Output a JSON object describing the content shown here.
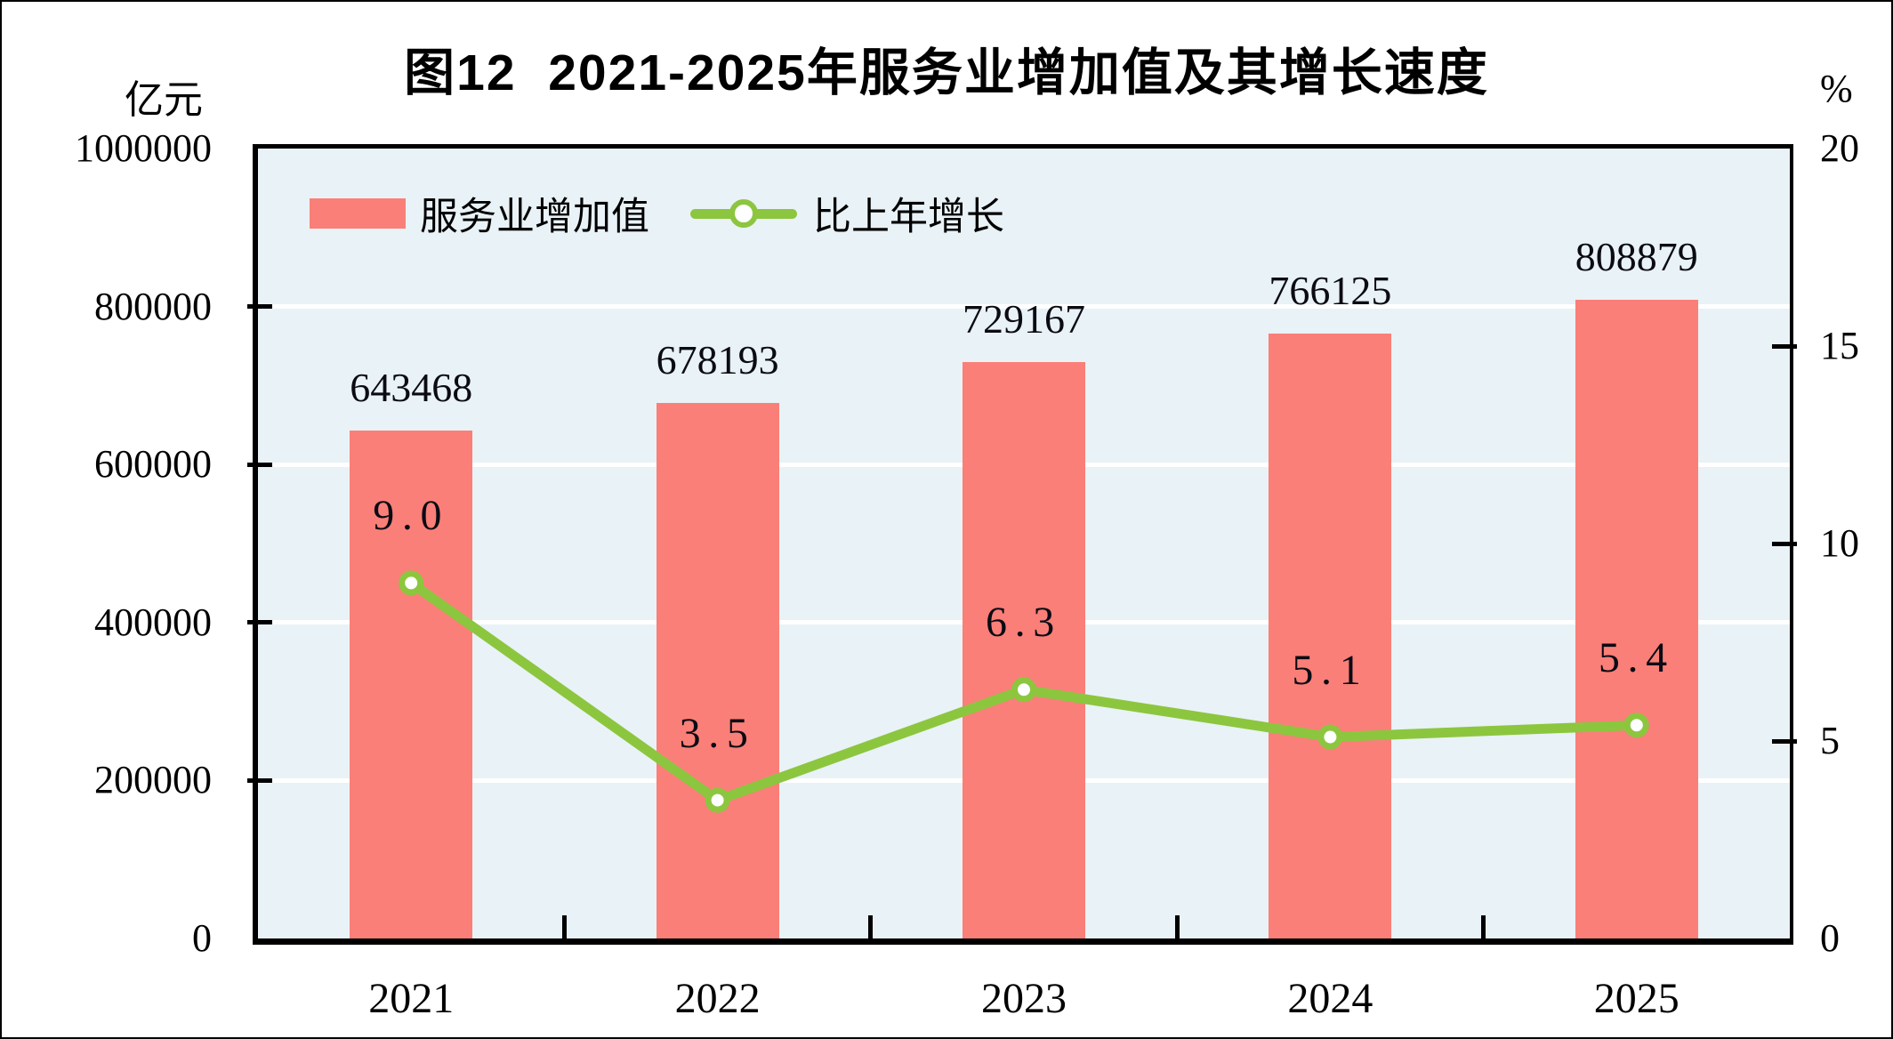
{
  "page": {
    "title": "图12  2021-2025年服务业增加值及其增长速度"
  },
  "axes": {
    "left_unit": "亿元",
    "right_unit": "%",
    "left_ticks": [
      "1000000",
      "800000",
      "600000",
      "400000",
      "200000",
      "0"
    ],
    "right_ticks": [
      "20",
      "15",
      "10",
      "5",
      "0"
    ]
  },
  "legend": {
    "bar_label": "服务业增加值",
    "line_label": "比上年增长"
  },
  "colors": {
    "bar": "#FA7F78",
    "line": "#8CC63F",
    "marker_fill": "#FFFFFF",
    "plot_bg": "#E9F2F6",
    "gridline": "#FFFFFF",
    "text": "#000000"
  },
  "chart_data": {
    "type": "bar",
    "combo": "bar+line",
    "title": "图12  2021-2025年服务业增加值及其增长速度",
    "categories": [
      "2021",
      "2022",
      "2023",
      "2024",
      "2025"
    ],
    "series": [
      {
        "name": "服务业增加值",
        "type": "bar",
        "axis": "left",
        "values": [
          643468,
          678193,
          729167,
          766125,
          808879
        ],
        "labels": [
          "643468",
          "678193",
          "729167",
          "766125",
          "808879"
        ]
      },
      {
        "name": "比上年增长",
        "type": "line",
        "axis": "right",
        "values": [
          9.0,
          3.5,
          6.3,
          5.1,
          5.4
        ],
        "labels": [
          "9.0",
          "3.5",
          "6.3",
          "5.1",
          "5.4"
        ]
      }
    ],
    "left_axis": {
      "label": "亿元",
      "range": [
        0,
        1000000
      ],
      "tick_step": 200000
    },
    "right_axis": {
      "label": "%",
      "range": [
        0,
        20
      ],
      "tick_step": 5
    },
    "legend_position": "top-left-inside",
    "grid": "horizontal-major-white"
  }
}
